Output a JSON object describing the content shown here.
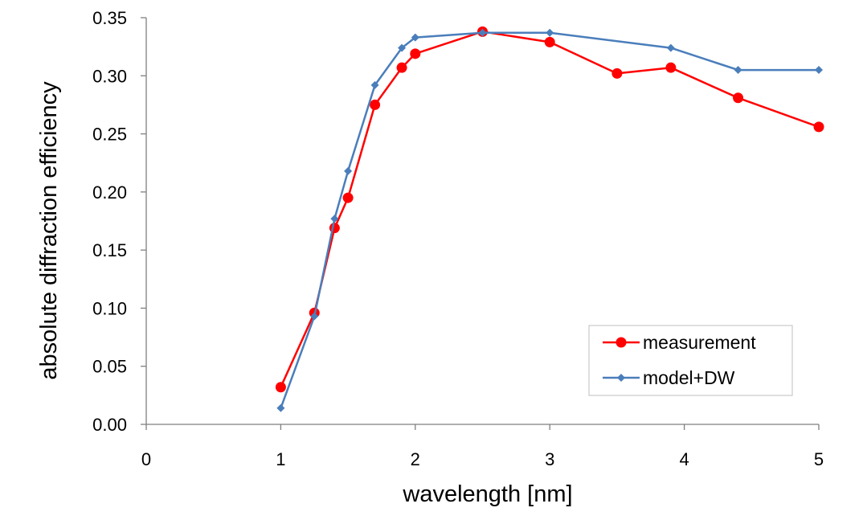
{
  "chart_data": {
    "type": "line",
    "title": "",
    "xlabel": "wavelength [nm]",
    "ylabel": "absolute diffraction efficiency",
    "xlim": [
      0,
      5
    ],
    "ylim": [
      0,
      0.35
    ],
    "x_ticks": [
      "0",
      "1",
      "2",
      "3",
      "4",
      "5"
    ],
    "y_ticks": [
      "0.00",
      "0.05",
      "0.10",
      "0.15",
      "0.20",
      "0.25",
      "0.30",
      "0.35"
    ],
    "grid": false,
    "legend_position": "bottom-right",
    "series": [
      {
        "name": "measurement",
        "color": "#ff0000",
        "marker": "circle",
        "x": [
          1.0,
          1.25,
          1.4,
          1.5,
          1.7,
          1.9,
          2.0,
          2.5,
          3.0,
          3.5,
          3.9,
          4.4,
          5.0
        ],
        "y": [
          0.032,
          0.096,
          0.169,
          0.195,
          0.275,
          0.307,
          0.319,
          0.338,
          0.329,
          0.302,
          0.307,
          0.281,
          0.256
        ]
      },
      {
        "name": "model+DW",
        "color": "#4a7ebb",
        "marker": "diamond",
        "x": [
          1.0,
          1.25,
          1.4,
          1.5,
          1.7,
          1.9,
          2.0,
          2.5,
          3.0,
          3.9,
          4.4,
          5.0
        ],
        "y": [
          0.014,
          0.093,
          0.177,
          0.218,
          0.292,
          0.324,
          0.333,
          0.337,
          0.337,
          0.324,
          0.305,
          0.305
        ]
      }
    ]
  }
}
